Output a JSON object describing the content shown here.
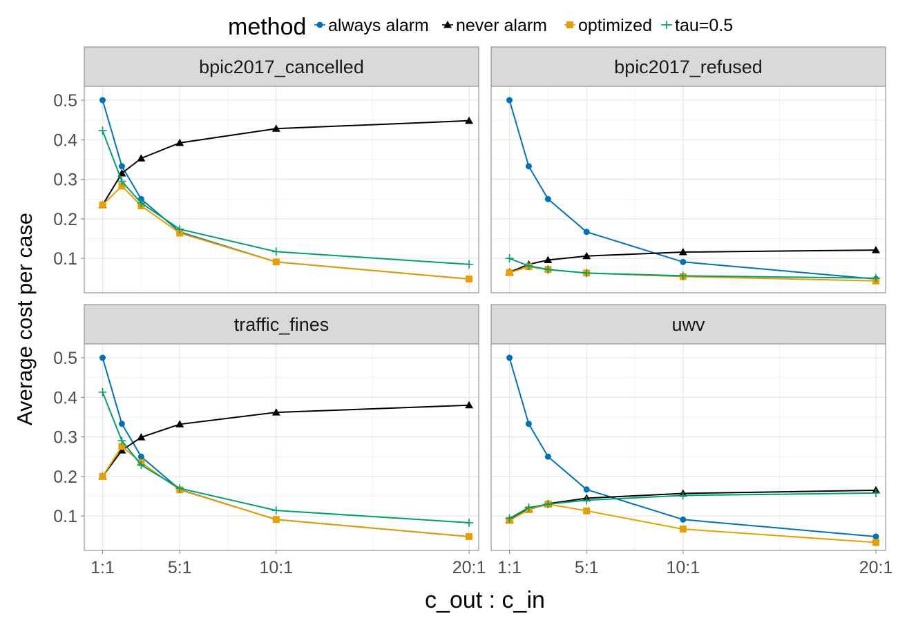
{
  "chart_data": {
    "type": "line",
    "ylabel": "Average cost per case",
    "xlabel": "c_out : c_in",
    "legend": {
      "title": "method",
      "placement": "top",
      "entries": [
        "always alarm",
        "never alarm",
        "optimized",
        "tau=0.5"
      ]
    },
    "x": [
      1,
      2,
      3,
      5,
      10,
      20
    ],
    "x_tick_values": [
      1,
      5,
      10,
      20
    ],
    "x_tick_labels": [
      "1:1",
      "5:1",
      "10:1",
      "20:1"
    ],
    "xlim": [
      0.05,
      20.5
    ],
    "y_tick_values": [
      0.1,
      0.2,
      0.3,
      0.4,
      0.5
    ],
    "y_tick_labels": [
      "0.1",
      "0.2",
      "0.3",
      "0.4",
      "0.5"
    ],
    "ylim": [
      0.013,
      0.535
    ],
    "grid": true,
    "series_colors": {
      "always alarm": "#0072b2",
      "never alarm": "#000000",
      "optimized": "#e69f00",
      "tau=0.5": "#009e73"
    },
    "panels": [
      {
        "title": "bpic2017_cancelled",
        "series": [
          {
            "name": "always alarm",
            "values": [
              0.5,
              0.333,
              0.25,
              0.167,
              0.091,
              0.048
            ]
          },
          {
            "name": "never alarm",
            "values": [
              0.235,
              0.315,
              0.353,
              0.392,
              0.428,
              0.448
            ]
          },
          {
            "name": "optimized",
            "values": [
              0.235,
              0.283,
              0.233,
              0.164,
              0.091,
              0.048
            ]
          },
          {
            "name": "tau=0.5",
            "values": [
              0.423,
              0.295,
              0.24,
              0.174,
              0.117,
              0.085
            ]
          }
        ]
      },
      {
        "title": "bpic2017_refused",
        "series": [
          {
            "name": "always alarm",
            "values": [
              0.5,
              0.333,
              0.25,
              0.167,
              0.091,
              0.048
            ]
          },
          {
            "name": "never alarm",
            "values": [
              0.065,
              0.085,
              0.096,
              0.106,
              0.116,
              0.121
            ]
          },
          {
            "name": "optimized",
            "values": [
              0.064,
              0.079,
              0.072,
              0.063,
              0.054,
              0.043
            ]
          },
          {
            "name": "tau=0.5",
            "values": [
              0.1,
              0.081,
              0.072,
              0.063,
              0.056,
              0.05
            ]
          }
        ]
      },
      {
        "title": "traffic_fines",
        "series": [
          {
            "name": "always alarm",
            "values": [
              0.5,
              0.333,
              0.25,
              0.167,
              0.091,
              0.048
            ]
          },
          {
            "name": "never alarm",
            "values": [
              0.2,
              0.266,
              0.299,
              0.332,
              0.362,
              0.38
            ]
          },
          {
            "name": "optimized",
            "values": [
              0.2,
              0.276,
              0.235,
              0.166,
              0.091,
              0.048
            ]
          },
          {
            "name": "tau=0.5",
            "values": [
              0.413,
              0.29,
              0.229,
              0.17,
              0.114,
              0.083
            ]
          }
        ]
      },
      {
        "title": "uwv",
        "series": [
          {
            "name": "always alarm",
            "values": [
              0.5,
              0.333,
              0.25,
              0.167,
              0.091,
              0.048
            ]
          },
          {
            "name": "never alarm",
            "values": [
              0.09,
              0.118,
              0.131,
              0.145,
              0.157,
              0.165
            ]
          },
          {
            "name": "optimized",
            "values": [
              0.089,
              0.116,
              0.13,
              0.113,
              0.067,
              0.033
            ]
          },
          {
            "name": "tau=0.5",
            "values": [
              0.094,
              0.121,
              0.13,
              0.14,
              0.152,
              0.158
            ]
          }
        ]
      }
    ]
  }
}
